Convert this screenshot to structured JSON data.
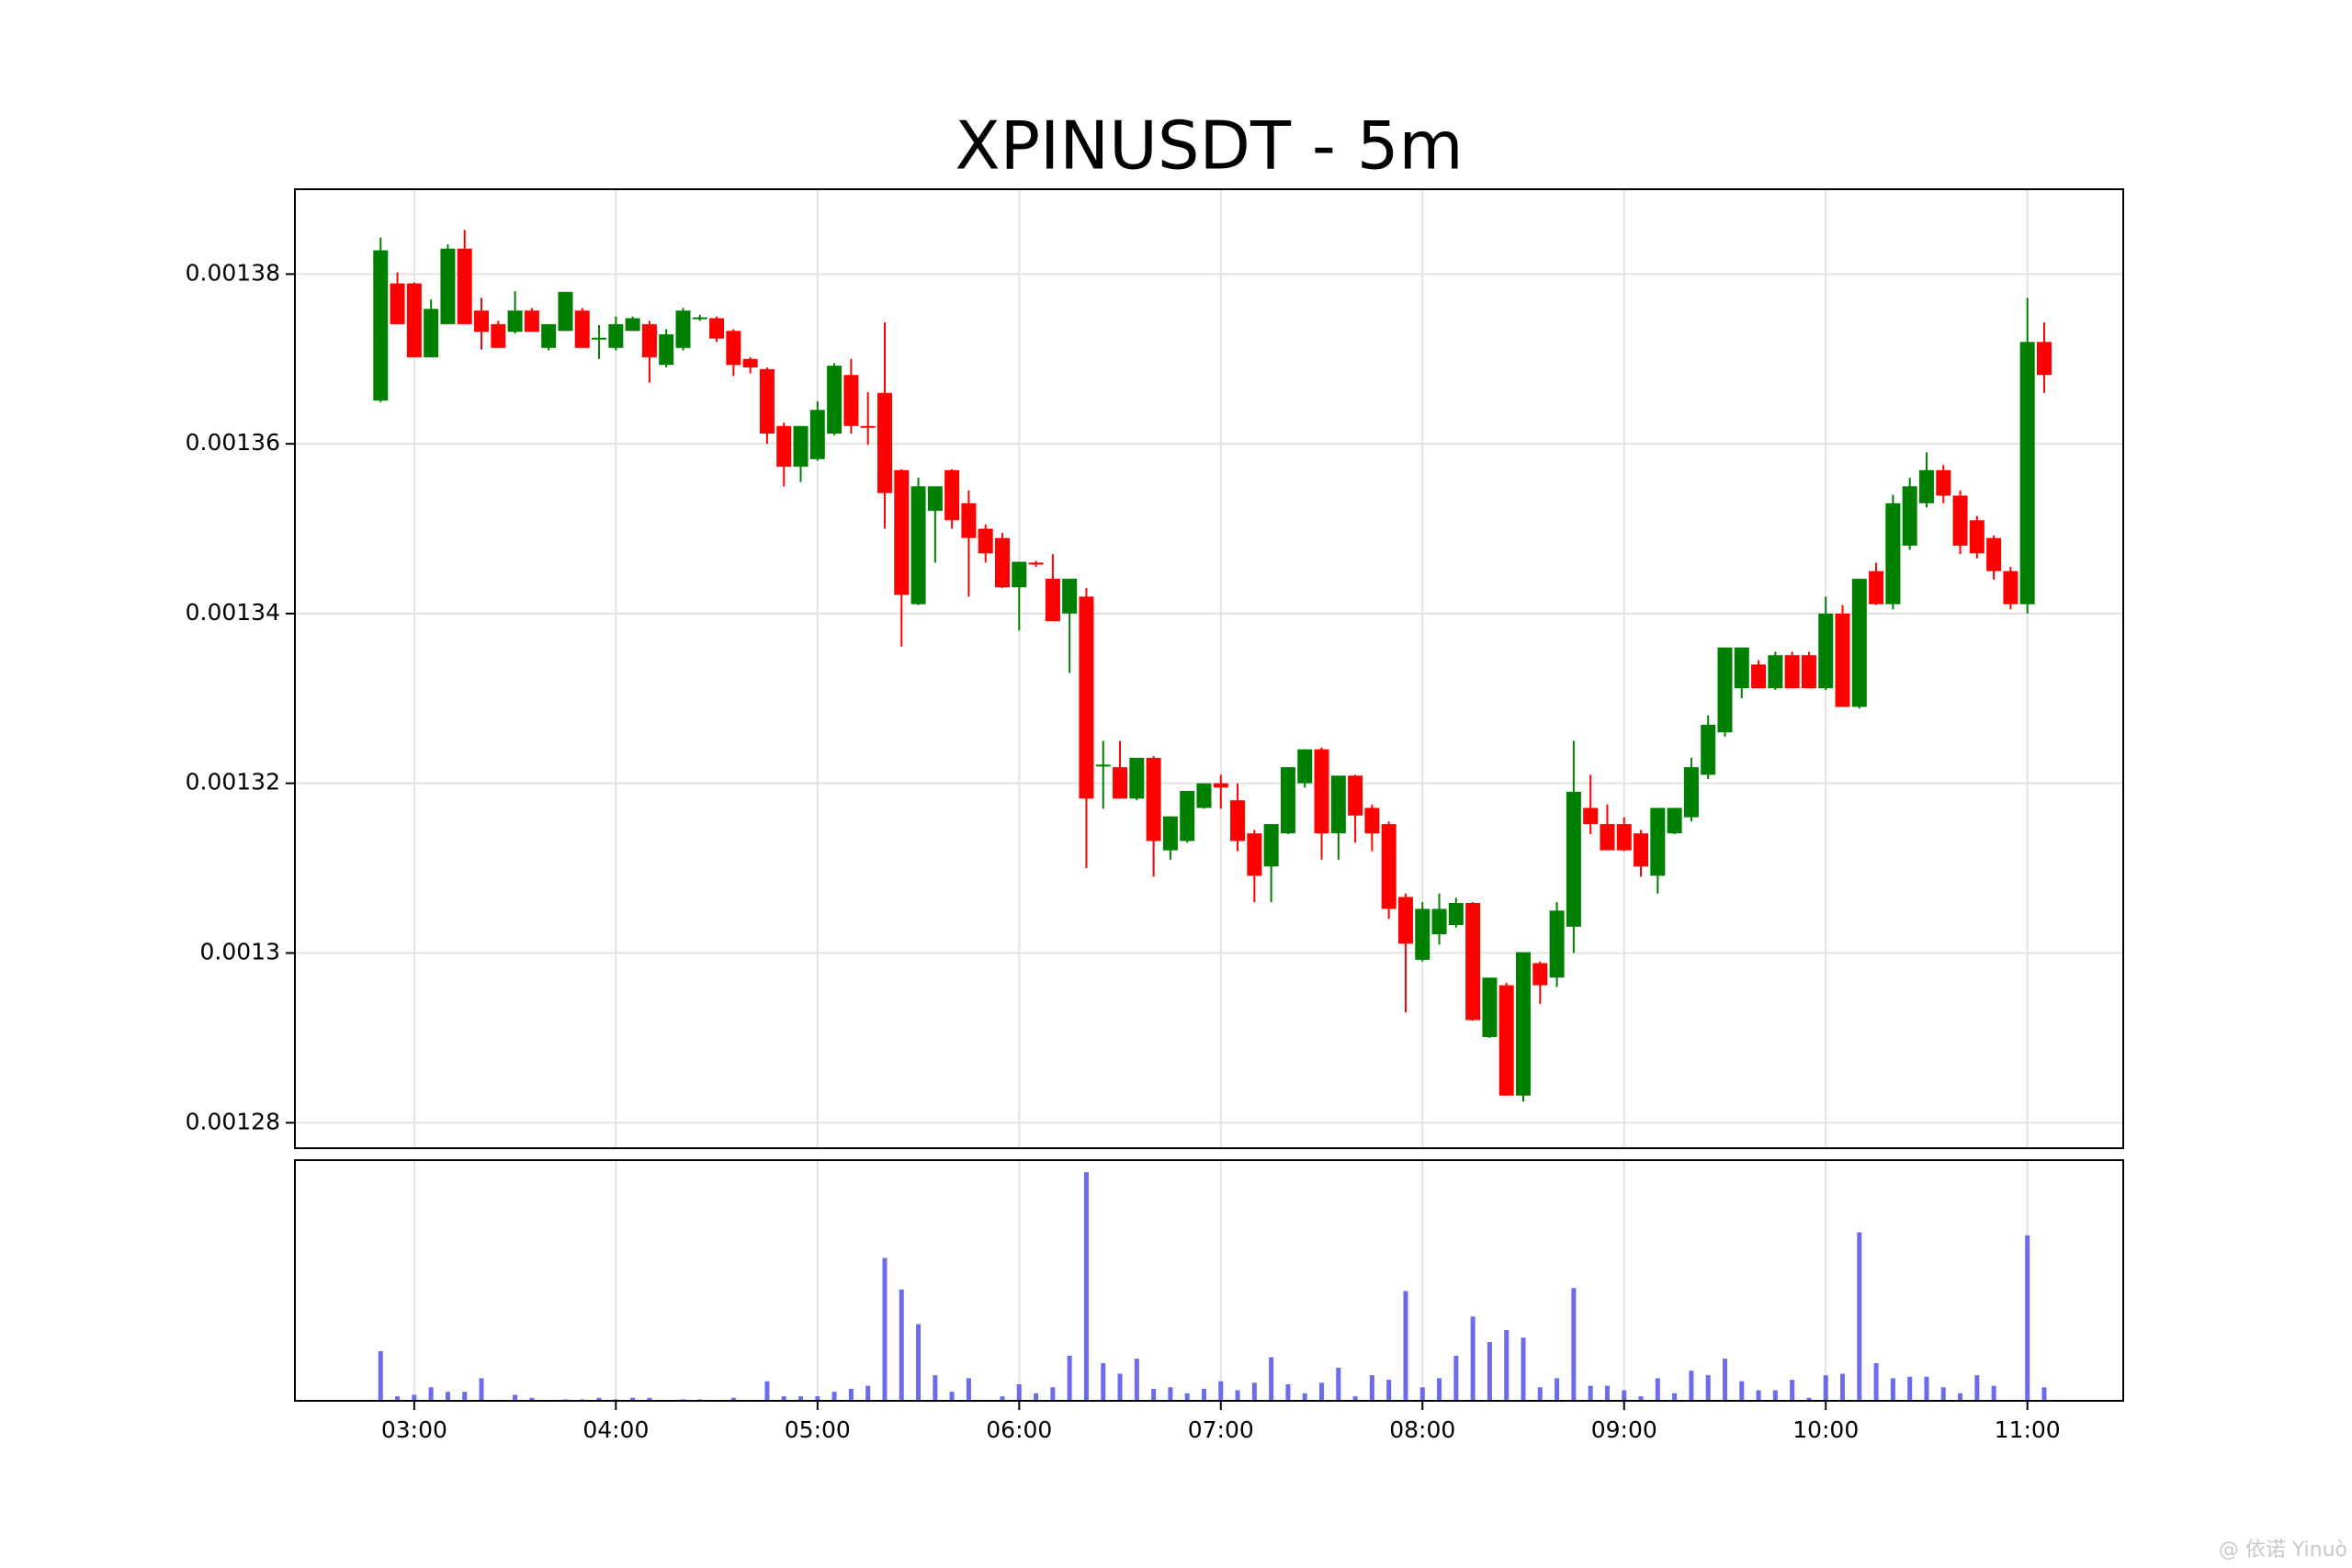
{
  "chart_data": {
    "type": "candlestick",
    "title": "XPINUSDT - 5m",
    "x": [
      "02:50",
      "02:55",
      "03:00",
      "03:05",
      "03:10",
      "03:15",
      "03:20",
      "03:25",
      "03:30",
      "03:35",
      "03:40",
      "03:45",
      "03:50",
      "03:55",
      "04:00",
      "04:05",
      "04:10",
      "04:15",
      "04:20",
      "04:25",
      "04:30",
      "04:35",
      "04:40",
      "04:45",
      "04:50",
      "04:55",
      "05:00",
      "05:05",
      "05:10",
      "05:15",
      "05:20",
      "05:25",
      "05:30",
      "05:35",
      "05:40",
      "05:45",
      "05:50",
      "05:55",
      "06:00",
      "06:05",
      "06:10",
      "06:15",
      "06:20",
      "06:25",
      "06:30",
      "06:35",
      "06:40",
      "06:45",
      "06:50",
      "06:55",
      "07:00",
      "07:05",
      "07:10",
      "07:15",
      "07:20",
      "07:25",
      "07:30",
      "07:35",
      "07:40",
      "07:45",
      "07:50",
      "07:55",
      "08:00",
      "08:05",
      "08:10",
      "08:15",
      "08:20",
      "08:25",
      "08:30",
      "08:35",
      "08:40",
      "08:45",
      "08:50",
      "08:55",
      "09:00",
      "09:05",
      "09:10",
      "09:15",
      "09:20",
      "09:25",
      "09:30",
      "09:35",
      "09:40",
      "09:45",
      "09:50",
      "09:55",
      "10:00",
      "10:05",
      "10:10",
      "10:15",
      "10:20",
      "10:25",
      "10:30",
      "10:35",
      "10:40",
      "10:45",
      "10:50",
      "10:55",
      "11:00",
      "11:05"
    ],
    "open": [
      0.0013651,
      0.0013789,
      0.0013789,
      0.0013702,
      0.0013741,
      0.001383,
      0.0013757,
      0.0013741,
      0.0013732,
      0.0013757,
      0.0013713,
      0.0013733,
      0.0013757,
      0.0013725,
      0.0013713,
      0.0013733,
      0.0013741,
      0.0013693,
      0.0013713,
      0.0013748,
      0.0013748,
      0.0013733,
      0.00137,
      0.0013688,
      0.0013621,
      0.0013573,
      0.0013582,
      0.0013612,
      0.0013681,
      0.0013621,
      0.001366,
      0.0013569,
      0.0013411,
      0.0013521,
      0.0013569,
      0.001353,
      0.00135,
      0.0013489,
      0.0013431,
      0.001346,
      0.0013441,
      0.00134,
      0.001342,
      0.001322,
      0.0013219,
      0.0013182,
      0.001323,
      0.0013121,
      0.0013132,
      0.0013171,
      0.00132,
      0.001318,
      0.0013141,
      0.0013102,
      0.0013141,
      0.00132,
      0.001324,
      0.0013141,
      0.0013209,
      0.0013171,
      0.0013152,
      0.0013066,
      0.0012992,
      0.0013022,
      0.0013033,
      0.0013059,
      0.0012901,
      0.0012962,
      0.0012832,
      0.0012988,
      0.0012971,
      0.0013031,
      0.0013171,
      0.0013152,
      0.0013152,
      0.0013141,
      0.0013091,
      0.0013141,
      0.001316,
      0.001321,
      0.001326,
      0.0013312,
      0.001334,
      0.0013312,
      0.0013351,
      0.0013351,
      0.0013312,
      0.00134,
      0.001329,
      0.001345,
      0.0013411,
      0.001348,
      0.001353,
      0.0013569,
      0.0013539,
      0.001351,
      0.0013489,
      0.001345,
      0.0013411,
      0.001372
    ],
    "high": [
      0.0013843,
      0.0013802,
      0.001379,
      0.001377,
      0.0013835,
      0.0013852,
      0.0013772,
      0.0013745,
      0.001378,
      0.001376,
      0.0013741,
      0.0013779,
      0.001376,
      0.001374,
      0.001375,
      0.001375,
      0.0013745,
      0.0013735,
      0.001376,
      0.0013752,
      0.001375,
      0.0013735,
      0.0013702,
      0.001369,
      0.0013625,
      0.0013621,
      0.001365,
      0.0013695,
      0.00137,
      0.0013661,
      0.0013743,
      0.001357,
      0.001356,
      0.001355,
      0.001357,
      0.0013545,
      0.0013505,
      0.0013495,
      0.0013461,
      0.0013462,
      0.001347,
      0.0013441,
      0.001343,
      0.001325,
      0.001325,
      0.001323,
      0.0013232,
      0.0013161,
      0.0013191,
      0.00132,
      0.001321,
      0.00132,
      0.0013145,
      0.0013152,
      0.0013219,
      0.001324,
      0.0013242,
      0.0013209,
      0.001321,
      0.0013175,
      0.0013155,
      0.001307,
      0.001306,
      0.001307,
      0.0013065,
      0.001306,
      0.001297,
      0.0012965,
      0.0013,
      0.001299,
      0.001306,
      0.001325,
      0.001321,
      0.0013175,
      0.001316,
      0.0013145,
      0.001317,
      0.0013171,
      0.001323,
      0.001328,
      0.001336,
      0.001336,
      0.0013345,
      0.0013355,
      0.0013355,
      0.0013355,
      0.001342,
      0.001341,
      0.001344,
      0.001346,
      0.001354,
      0.001356,
      0.001359,
      0.0013575,
      0.0013545,
      0.0013515,
      0.0013492,
      0.0013455,
      0.0013772,
      0.0013743
    ],
    "low": [
      0.0013649,
      0.0013741,
      0.0013702,
      0.0013702,
      0.0013741,
      0.0013741,
      0.0013711,
      0.0013713,
      0.001373,
      0.0013732,
      0.001371,
      0.0013733,
      0.0013713,
      0.00137,
      0.001371,
      0.0013733,
      0.0013672,
      0.001369,
      0.001371,
      0.0013745,
      0.001372,
      0.001368,
      0.0013683,
      0.00136,
      0.001355,
      0.0013555,
      0.001358,
      0.001361,
      0.0013612,
      0.0013599,
      0.00135,
      0.0013361,
      0.001341,
      0.001346,
      0.00135,
      0.001342,
      0.001346,
      0.001343,
      0.001338,
      0.0013455,
      0.0013391,
      0.001333,
      0.00131,
      0.001317,
      0.0013182,
      0.001318,
      0.001309,
      0.001311,
      0.001313,
      0.001317,
      0.001317,
      0.001312,
      0.001306,
      0.001306,
      0.001314,
      0.0013195,
      0.001311,
      0.001311,
      0.001313,
      0.001312,
      0.001304,
      0.001293,
      0.001299,
      0.001301,
      0.001303,
      0.001292,
      0.00129,
      0.0012832,
      0.0012825,
      0.001294,
      0.001296,
      0.0013,
      0.001314,
      0.001313,
      0.001312,
      0.001309,
      0.001307,
      0.001314,
      0.0013155,
      0.0013205,
      0.0013255,
      0.00133,
      0.0013312,
      0.001331,
      0.0013312,
      0.0013312,
      0.001331,
      0.001329,
      0.0013288,
      0.001341,
      0.0013405,
      0.0013475,
      0.0013525,
      0.001353,
      0.001347,
      0.0013465,
      0.001344,
      0.0013405,
      0.00134,
      0.001366
    ],
    "close": [
      0.0013828,
      0.0013741,
      0.0013702,
      0.0013759,
      0.001383,
      0.0013741,
      0.0013732,
      0.0013713,
      0.0013757,
      0.0013732,
      0.0013741,
      0.0013779,
      0.0013713,
      0.0013725,
      0.0013741,
      0.0013748,
      0.0013702,
      0.0013729,
      0.0013757,
      0.0013749,
      0.0013724,
      0.0013693,
      0.001369,
      0.0013612,
      0.0013573,
      0.0013621,
      0.001364,
      0.0013692,
      0.0013621,
      0.001362,
      0.0013542,
      0.0013422,
      0.001355,
      0.001355,
      0.001351,
      0.0013489,
      0.0013471,
      0.0013431,
      0.0013461,
      0.0013458,
      0.0013391,
      0.0013441,
      0.0013182,
      0.0013222,
      0.0013182,
      0.001323,
      0.0013132,
      0.0013161,
      0.0013191,
      0.00132,
      0.0013195,
      0.0013132,
      0.0013091,
      0.0013152,
      0.0013219,
      0.001324,
      0.0013141,
      0.0013209,
      0.0013162,
      0.0013141,
      0.0013052,
      0.0013011,
      0.0013052,
      0.0013052,
      0.0013059,
      0.0012921,
      0.0012971,
      0.0012832,
      0.0013001,
      0.0012962,
      0.001305,
      0.001319,
      0.0013152,
      0.0013121,
      0.0013121,
      0.0013102,
      0.0013171,
      0.0013171,
      0.0013219,
      0.0013269,
      0.001336,
      0.001336,
      0.0013312,
      0.0013351,
      0.0013312,
      0.0013312,
      0.00134,
      0.001329,
      0.0013441,
      0.0013411,
      0.001353,
      0.001355,
      0.0013569,
      0.0013539,
      0.001348,
      0.0013471,
      0.001345,
      0.0013411,
      0.001372,
      0.0013681
    ],
    "volume": [
      33,
      3,
      4,
      9,
      6,
      6,
      15,
      0,
      4,
      2,
      0,
      1,
      1,
      2,
      1,
      2,
      2,
      0,
      1,
      1,
      0,
      2,
      0,
      13,
      3,
      3,
      3,
      6,
      8,
      10,
      95,
      74,
      51,
      17,
      6,
      15,
      0,
      3,
      11,
      5,
      9,
      30,
      152,
      25,
      18,
      28,
      8,
      9,
      5,
      8,
      13,
      7,
      12,
      29,
      11,
      5,
      12,
      22,
      3,
      17,
      14,
      73,
      9,
      15,
      30,
      56,
      39,
      47,
      42,
      9,
      15,
      75,
      10,
      10,
      7,
      3,
      15,
      5,
      20,
      17,
      28,
      13,
      7,
      7,
      14,
      2,
      17,
      18,
      112,
      25,
      15,
      16,
      16,
      9,
      5,
      17,
      10,
      0,
      110,
      9
    ],
    "up_color": "#008000",
    "down_color": "#ff0000",
    "volume_color": "#6b6bee",
    "ylim": [
      0.001277,
      0.00139
    ],
    "yticks": [
      0.00128,
      0.0013,
      0.00132,
      0.00134,
      0.00136,
      0.00138
    ],
    "volume_ylim": [
      0,
      160
    ],
    "xticks": [
      "03:00",
      "04:00",
      "05:00",
      "06:00",
      "07:00",
      "08:00",
      "09:00",
      "10:00",
      "11:00"
    ],
    "grid": true
  },
  "watermark": "@ 依诺 Yinuò"
}
